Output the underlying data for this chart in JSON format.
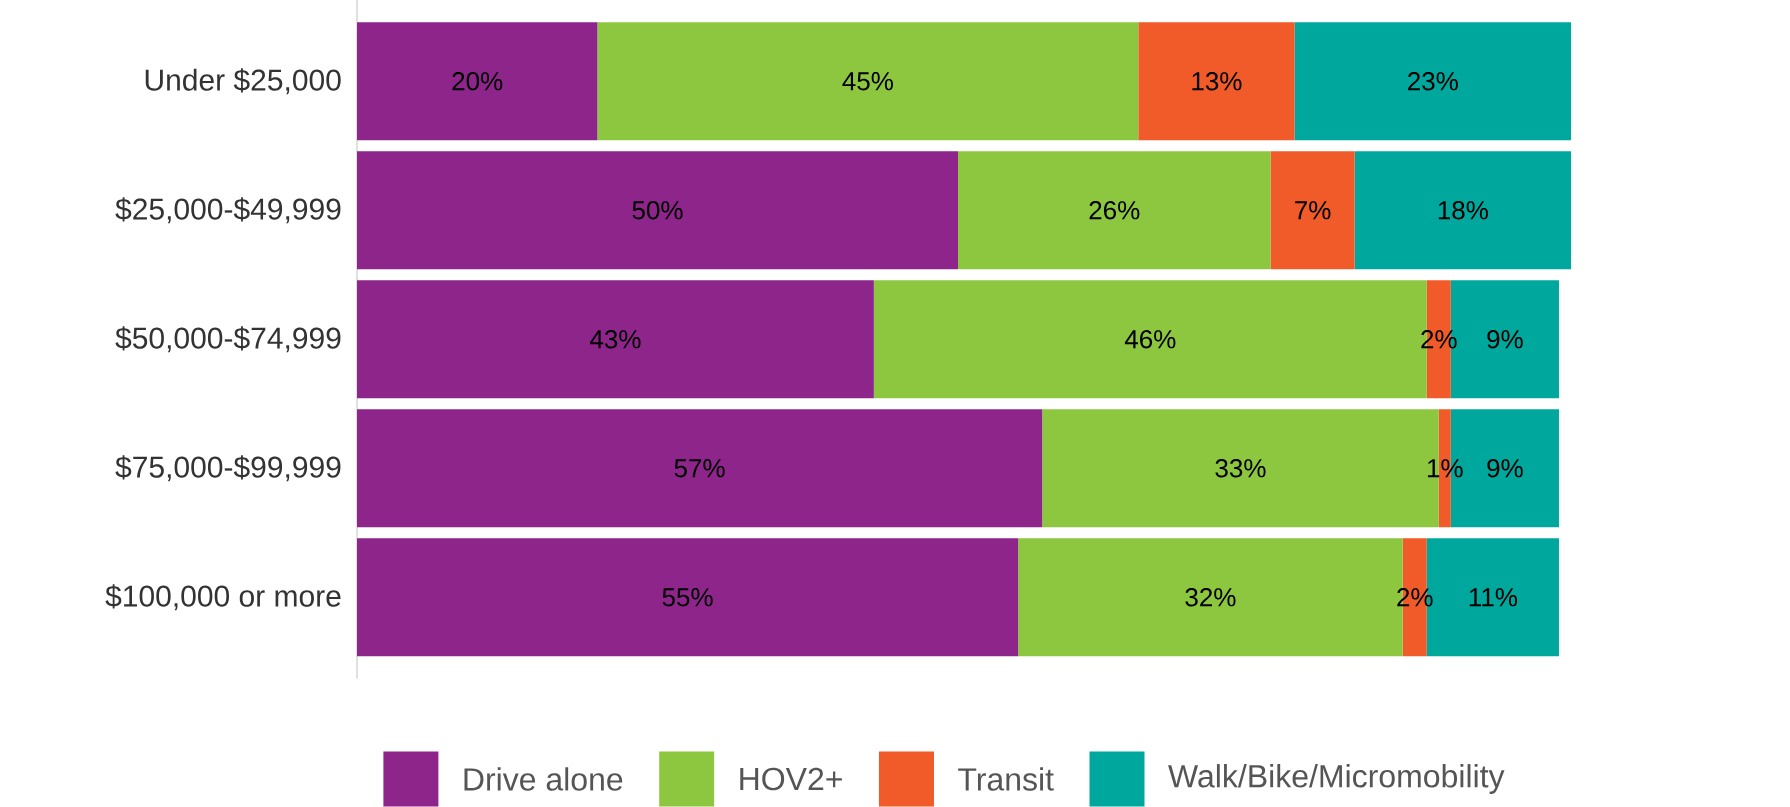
{
  "chart_data": {
    "type": "bar",
    "orientation": "horizontal",
    "stacked": true,
    "legend": "bottom",
    "categories": [
      "Under $25,000",
      "$25,000-$49,999",
      "$50,000-$74,999",
      "$75,000-$99,999",
      "$100,000 or more"
    ],
    "series": [
      {
        "name": "Drive alone",
        "color": "#8e258b",
        "values": [
          20,
          50,
          43,
          57,
          55
        ],
        "value_labels": [
          "20%",
          "50%",
          "43%",
          "57%",
          "55%"
        ]
      },
      {
        "name": "HOV2+",
        "color": "#8dc63f",
        "values": [
          45,
          26,
          46,
          33,
          32
        ],
        "value_labels": [
          "45%",
          "26%",
          "46%",
          "33%",
          "32%"
        ]
      },
      {
        "name": "Transit",
        "color": "#f15a29",
        "values": [
          13,
          7,
          2,
          1,
          2
        ],
        "value_labels": [
          "13%",
          "7%",
          "2%",
          "1%",
          "2%"
        ]
      },
      {
        "name": "Walk/Bike/Micromobility",
        "color": "#00a79d",
        "values": [
          23,
          18,
          9,
          9,
          11
        ],
        "value_labels": [
          "23%",
          "18%",
          "9%",
          "9%",
          "11%"
        ]
      }
    ]
  }
}
